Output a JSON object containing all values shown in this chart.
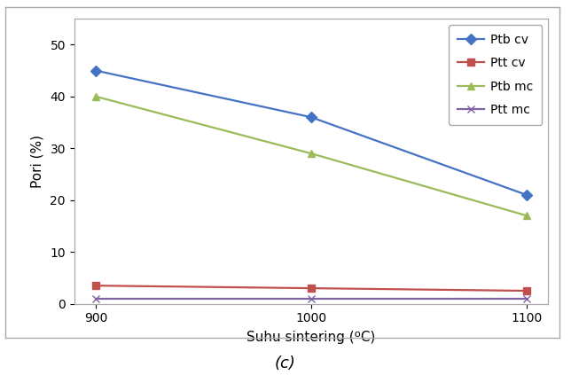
{
  "x": [
    900,
    1000,
    1100
  ],
  "ptb_cv": [
    45,
    36,
    21
  ],
  "ptt_cv": [
    3.5,
    3.0,
    2.5
  ],
  "ptb_mc": [
    40,
    29,
    17
  ],
  "ptt_mc": [
    1.0,
    1.0,
    1.0
  ],
  "xlabel": "Suhu sintering (ºC)",
  "ylabel": "Pori (%)",
  "caption": "(c)",
  "ylim": [
    0,
    55
  ],
  "yticks": [
    0,
    10,
    20,
    30,
    40,
    50
  ],
  "xticks": [
    900,
    1000,
    1100
  ],
  "legend_labels": [
    "Ptb cv",
    "Ptt cv",
    "Ptb mc",
    "Ptt mc"
  ],
  "colors": {
    "ptb_cv": "#4472C4",
    "ptt_cv": "#C0504D",
    "ptb_mc": "#9BBB59",
    "ptt_mc": "#8064A2"
  },
  "axis_fontsize": 11,
  "tick_fontsize": 10,
  "legend_fontsize": 10,
  "caption_fontsize": 13,
  "outer_border_color": "#A0A0A0",
  "line_width": 1.6,
  "marker_size": 6
}
